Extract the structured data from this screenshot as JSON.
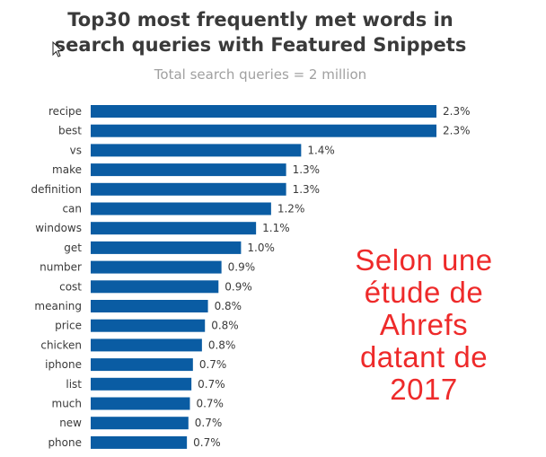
{
  "chart_data": {
    "type": "bar",
    "orientation": "horizontal",
    "title": "Top30 most frequently met words in\nsearch queries with Featured Snippets",
    "subtitle": "Total search queries = 2 million",
    "categories": [
      "recipe",
      "best",
      "vs",
      "make",
      "definition",
      "can",
      "windows",
      "get",
      "number",
      "cost",
      "meaning",
      "price",
      "chicken",
      "iphone",
      "list",
      "much",
      "new",
      "phone"
    ],
    "values": [
      2.3,
      2.3,
      1.4,
      1.3,
      1.3,
      1.2,
      1.1,
      1.0,
      0.9,
      0.9,
      0.8,
      0.8,
      0.8,
      0.7,
      0.7,
      0.7,
      0.7,
      0.7
    ],
    "value_labels": [
      "2.3%",
      "2.3%",
      "1.4%",
      "1.3%",
      "1.3%",
      "1.2%",
      "1.1%",
      "1.0%",
      "0.9%",
      "0.9%",
      "0.8%",
      "0.8%",
      "0.8%",
      "0.7%",
      "0.7%",
      "0.7%",
      "0.7%",
      "0.7%"
    ],
    "bar_lengths": [
      2.3,
      2.3,
      1.4,
      1.3,
      1.3,
      1.2,
      1.1,
      1.0,
      0.87,
      0.85,
      0.78,
      0.76,
      0.74,
      0.68,
      0.67,
      0.66,
      0.65,
      0.64
    ],
    "xlim": [
      0,
      2.3
    ],
    "grid": false,
    "legend": "none",
    "bar_color": "#0a5ca3"
  },
  "annotation": {
    "text": "Selon une\nétude de\nAhrefs\ndatant de\n2017",
    "color": "#ee2a2a"
  },
  "icons": {
    "cursor": "mouse-pointer-icon"
  }
}
